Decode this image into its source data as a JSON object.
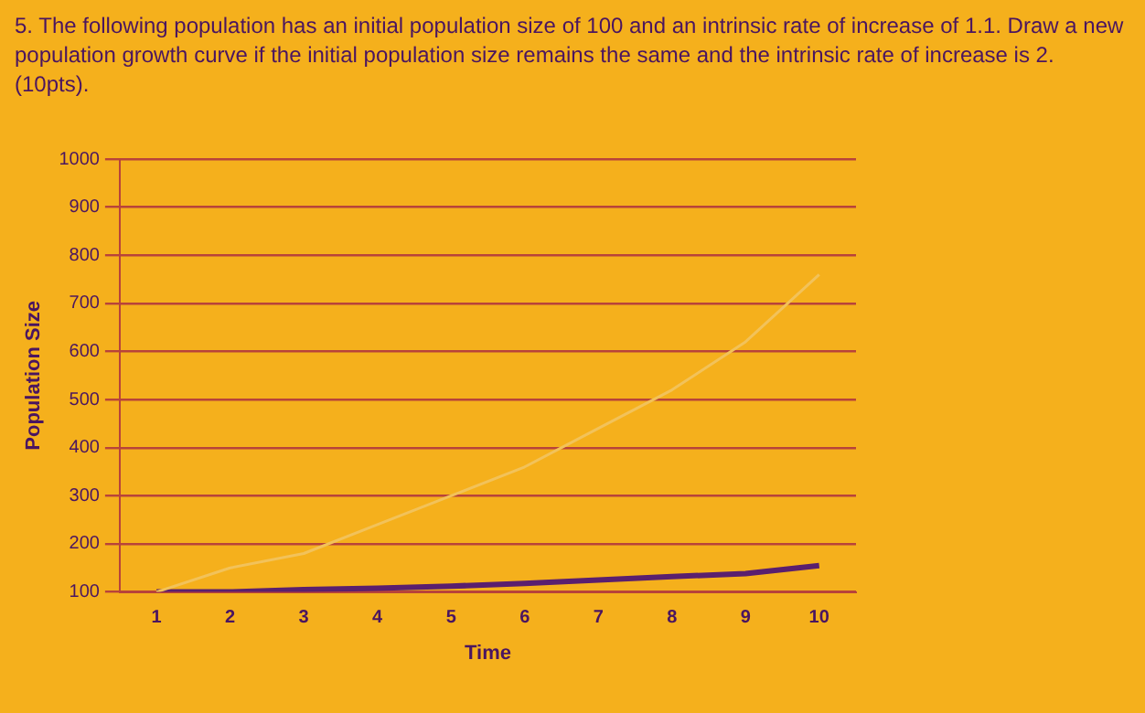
{
  "chart_data": {
    "type": "line",
    "title": "5. The following population has an initial population size of 100 and an intrinsic rate of increase of 1.1. Draw a new population growth curve if the initial population size remains the same and the intrinsic rate of increase is 2. (10pts).",
    "xlabel": "Time",
    "ylabel": "Population Size",
    "categories": [
      "1",
      "2",
      "3",
      "4",
      "5",
      "6",
      "7",
      "8",
      "9",
      "10"
    ],
    "series": [
      {
        "color": "#5a1f6e",
        "values": [
          100,
          100,
          105,
          108,
          112,
          118,
          125,
          132,
          138,
          155
        ]
      },
      {
        "color": "#f2c25a",
        "values": [
          100,
          150,
          180,
          240,
          300,
          360,
          440,
          520,
          620,
          760
        ]
      }
    ],
    "ylim": [
      100,
      1000
    ],
    "yticks": [
      100,
      200,
      300,
      400,
      500,
      600,
      700,
      800,
      900,
      1000
    ],
    "grid": "y",
    "legend": false,
    "marker": "none"
  }
}
